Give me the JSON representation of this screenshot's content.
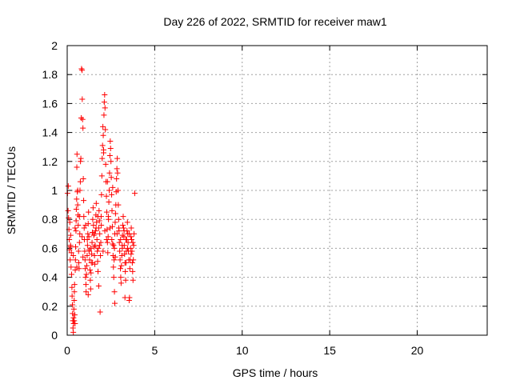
{
  "chart_data": {
    "type": "scatter",
    "title": "Day 226 of 2022, SRMTID for receiver maw1",
    "xlabel": "GPS time / hours",
    "ylabel": "SRMTID / TECUs",
    "xlim": [
      0,
      24
    ],
    "ylim": [
      0,
      2
    ],
    "x_ticks": [
      0,
      5,
      10,
      15,
      20
    ],
    "x_tick_labels": [
      "0",
      "5",
      "10",
      "15",
      "20"
    ],
    "y_ticks": [
      0,
      0.2,
      0.4,
      0.6,
      0.8,
      1,
      1.2,
      1.4,
      1.6,
      1.8,
      2
    ],
    "y_tick_labels": [
      "0",
      "0.2",
      "0.4",
      "0.6",
      "0.8",
      "1",
      "1.2",
      "1.4",
      "1.6",
      "1.8",
      "2"
    ],
    "grid": true,
    "marker": "plus",
    "color": "#ff0000",
    "series": [
      {
        "points": [
          [
            0.02,
            0.98
          ],
          [
            0.05,
            0.86
          ],
          [
            0.06,
            1.03
          ],
          [
            0.08,
            0.81
          ],
          [
            0.1,
            0.73
          ],
          [
            0.12,
            0.66
          ],
          [
            0.13,
            0.59
          ],
          [
            0.15,
            0.78
          ],
          [
            0.17,
            0.52
          ],
          [
            0.19,
            0.62
          ],
          [
            0.2,
            0.69
          ],
          [
            0.22,
            0.47
          ],
          [
            0.24,
            0.57
          ],
          [
            0.25,
            0.42
          ],
          [
            0.27,
            0.33
          ],
          [
            0.28,
            0.27
          ],
          [
            0.3,
            0.21
          ],
          [
            0.31,
            0.15
          ],
          [
            0.32,
            0.1
          ],
          [
            0.33,
            0.05
          ],
          [
            0.35,
            0.02
          ],
          [
            0.36,
            0.12
          ],
          [
            0.37,
            0.08
          ],
          [
            0.38,
            0.18
          ],
          [
            0.4,
            0.24
          ],
          [
            0.41,
            0.3
          ],
          [
            0.42,
            0.35
          ],
          [
            0.43,
            0.14
          ],
          [
            0.45,
            0.08
          ],
          [
            0.46,
            0.45
          ],
          [
            0.47,
            0.52
          ],
          [
            0.48,
            0.61
          ],
          [
            0.5,
            0.72
          ],
          [
            0.51,
            0.79
          ],
          [
            0.52,
            0.87
          ],
          [
            0.54,
            0.94
          ],
          [
            0.55,
            1.16
          ],
          [
            0.56,
            1.25
          ],
          [
            0.58,
            0.99
          ],
          [
            0.6,
            0.9
          ],
          [
            0.62,
            0.83
          ],
          [
            0.63,
            0.76
          ],
          [
            0.65,
            0.58
          ],
          [
            0.66,
            0.5
          ],
          [
            0.68,
            0.46
          ],
          [
            0.7,
            0.64
          ],
          [
            0.72,
            0.7
          ],
          [
            0.73,
            1.0
          ],
          [
            0.75,
            1.06
          ],
          [
            0.76,
            1.2
          ],
          [
            0.78,
            1.22
          ],
          [
            0.8,
            1.5
          ],
          [
            0.82,
            1.84
          ],
          [
            0.85,
            1.83
          ],
          [
            0.86,
            1.63
          ],
          [
            0.88,
            1.49
          ],
          [
            0.9,
            1.43
          ],
          [
            0.92,
            1.08
          ],
          [
            0.94,
            0.93
          ],
          [
            0.95,
            0.82
          ],
          [
            0.97,
            0.74
          ],
          [
            0.98,
            0.66
          ],
          [
            1.0,
            0.58
          ],
          [
            1.02,
            0.52
          ],
          [
            1.03,
            0.46
          ],
          [
            1.05,
            0.4
          ],
          [
            1.07,
            0.35
          ],
          [
            1.08,
            0.3
          ],
          [
            1.1,
            0.42
          ],
          [
            1.12,
            0.48
          ],
          [
            1.14,
            0.55
          ],
          [
            1.16,
            0.62
          ],
          [
            1.18,
            0.7
          ],
          [
            1.2,
            0.77
          ],
          [
            1.22,
            0.85
          ],
          [
            1.24,
            0.68
          ],
          [
            1.26,
            0.59
          ],
          [
            1.28,
            0.52
          ],
          [
            1.3,
            0.45
          ],
          [
            1.32,
            0.38
          ],
          [
            1.34,
            0.32
          ],
          [
            1.36,
            0.43
          ],
          [
            1.38,
            0.5
          ],
          [
            1.4,
            0.56
          ],
          [
            1.42,
            0.64
          ],
          [
            1.44,
            0.71
          ],
          [
            1.46,
            0.8
          ],
          [
            1.48,
            0.88
          ],
          [
            1.5,
            0.76
          ],
          [
            1.52,
            0.69
          ],
          [
            1.54,
            0.61
          ],
          [
            1.56,
            0.55
          ],
          [
            1.58,
            0.49
          ],
          [
            1.6,
            0.62
          ],
          [
            1.62,
            0.72
          ],
          [
            1.64,
            0.83
          ],
          [
            1.66,
            0.91
          ],
          [
            1.68,
            0.78
          ],
          [
            1.7,
            0.66
          ],
          [
            1.72,
            0.58
          ],
          [
            1.74,
            0.51
          ],
          [
            1.76,
            0.44
          ],
          [
            1.78,
            0.6
          ],
          [
            1.8,
            0.74
          ],
          [
            1.82,
            0.86
          ],
          [
            1.84,
            0.79
          ],
          [
            1.86,
            0.7
          ],
          [
            1.88,
            0.16
          ],
          [
            1.9,
            0.55
          ],
          [
            1.92,
            0.64
          ],
          [
            1.94,
            0.82
          ],
          [
            1.96,
            0.97
          ],
          [
            1.98,
            1.1
          ],
          [
            2.0,
            1.22
          ],
          [
            2.02,
            1.31
          ],
          [
            2.04,
            1.44
          ],
          [
            2.06,
            1.38
          ],
          [
            2.08,
            1.28
          ],
          [
            2.1,
            1.52
          ],
          [
            2.12,
            1.61
          ],
          [
            2.14,
            1.66
          ],
          [
            2.16,
            1.57
          ],
          [
            2.18,
            1.42
          ],
          [
            2.2,
            1.18
          ],
          [
            2.22,
            1.06
          ],
          [
            2.24,
            0.96
          ],
          [
            2.26,
            0.85
          ],
          [
            2.28,
            0.73
          ],
          [
            2.3,
            0.64
          ],
          [
            2.32,
            0.57
          ],
          [
            2.34,
            0.68
          ],
          [
            2.36,
            0.8
          ],
          [
            2.38,
            0.92
          ],
          [
            2.4,
            1.0
          ],
          [
            2.42,
            1.12
          ],
          [
            2.44,
            1.24
          ],
          [
            2.46,
            1.34
          ],
          [
            2.48,
            1.29
          ],
          [
            2.5,
            1.2
          ],
          [
            2.52,
            1.09
          ],
          [
            2.54,
            0.97
          ],
          [
            2.56,
            0.86
          ],
          [
            2.58,
            0.75
          ],
          [
            2.6,
            0.63
          ],
          [
            2.62,
            0.55
          ],
          [
            2.64,
            0.47
          ],
          [
            2.66,
            0.4
          ],
          [
            2.68,
            0.52
          ],
          [
            2.7,
            0.6
          ],
          [
            2.72,
            0.7
          ],
          [
            2.74,
            0.78
          ],
          [
            2.76,
            0.84
          ],
          [
            2.78,
            0.9
          ],
          [
            2.8,
            0.99
          ],
          [
            2.82,
            1.08
          ],
          [
            2.84,
            1.15
          ],
          [
            2.86,
            1.22
          ],
          [
            2.88,
            1.12
          ],
          [
            2.9,
            1.0
          ],
          [
            2.92,
            0.9
          ],
          [
            2.94,
            0.8
          ],
          [
            2.96,
            0.72
          ],
          [
            2.98,
            0.64
          ],
          [
            3.0,
            0.58
          ],
          [
            3.02,
            0.52
          ],
          [
            3.04,
            0.46
          ],
          [
            3.06,
            0.4
          ],
          [
            3.08,
            0.36
          ],
          [
            3.1,
            0.48
          ],
          [
            3.12,
            0.55
          ],
          [
            3.14,
            0.62
          ],
          [
            3.16,
            0.69
          ],
          [
            3.18,
            0.76
          ],
          [
            3.2,
            0.82
          ],
          [
            3.22,
            0.74
          ],
          [
            3.24,
            0.68
          ],
          [
            3.26,
            0.62
          ],
          [
            3.28,
            0.56
          ],
          [
            3.3,
            0.5
          ],
          [
            3.32,
            0.44
          ],
          [
            3.34,
            0.38
          ],
          [
            3.36,
            0.5
          ],
          [
            3.38,
            0.58
          ],
          [
            3.4,
            0.66
          ],
          [
            3.42,
            0.72
          ],
          [
            3.44,
            0.78
          ],
          [
            3.46,
            0.7
          ],
          [
            3.48,
            0.64
          ],
          [
            3.5,
            0.58
          ],
          [
            3.52,
            0.52
          ],
          [
            3.54,
            0.24
          ],
          [
            3.56,
            0.26
          ],
          [
            3.58,
            0.46
          ],
          [
            3.6,
            0.52
          ],
          [
            3.62,
            0.6
          ],
          [
            3.64,
            0.68
          ],
          [
            3.66,
            0.74
          ],
          [
            3.68,
            0.66
          ],
          [
            3.7,
            0.58
          ],
          [
            3.72,
            0.5
          ],
          [
            3.74,
            0.44
          ],
          [
            3.76,
            0.38
          ],
          [
            3.78,
            0.52
          ],
          [
            3.8,
            0.62
          ],
          [
            3.82,
            0.7
          ],
          [
            3.86,
            0.98
          ],
          [
            0.2,
            0.61
          ],
          [
            0.35,
            0.55
          ],
          [
            0.55,
            0.47
          ],
          [
            0.7,
            0.82
          ],
          [
            0.85,
            0.68
          ],
          [
            1.05,
            0.76
          ],
          [
            1.25,
            0.58
          ],
          [
            1.45,
            0.5
          ],
          [
            1.65,
            0.74
          ],
          [
            1.85,
            0.62
          ],
          [
            2.05,
            0.58
          ],
          [
            2.25,
            0.66
          ],
          [
            2.45,
            0.74
          ],
          [
            2.65,
            0.62
          ],
          [
            2.85,
            0.7
          ],
          [
            3.05,
            0.66
          ],
          [
            3.25,
            0.72
          ],
          [
            3.45,
            0.6
          ],
          [
            3.65,
            0.56
          ],
          [
            0.45,
            0.74
          ],
          [
            1.15,
            0.66
          ],
          [
            1.55,
            0.7
          ],
          [
            1.95,
            0.76
          ],
          [
            2.35,
            0.82
          ],
          [
            2.75,
            0.54
          ],
          [
            3.15,
            0.6
          ],
          [
            3.55,
            0.7
          ],
          [
            0.9,
            0.54
          ],
          [
            1.35,
            0.6
          ],
          [
            1.75,
            0.82
          ],
          [
            2.15,
            0.72
          ],
          [
            2.55,
            0.66
          ],
          [
            2.95,
            0.74
          ],
          [
            3.35,
            0.66
          ],
          [
            3.75,
            0.64
          ],
          [
            2.08,
            1.26
          ],
          [
            2.3,
            1.06
          ],
          [
            2.6,
            1.02
          ],
          [
            0.6,
            1.0
          ],
          [
            2.7,
            0.3
          ],
          [
            2.72,
            0.22
          ],
          [
            1.2,
            0.28
          ],
          [
            1.8,
            0.34
          ],
          [
            3.3,
            0.26
          ],
          [
            0.4,
            0.1
          ]
        ]
      }
    ]
  }
}
